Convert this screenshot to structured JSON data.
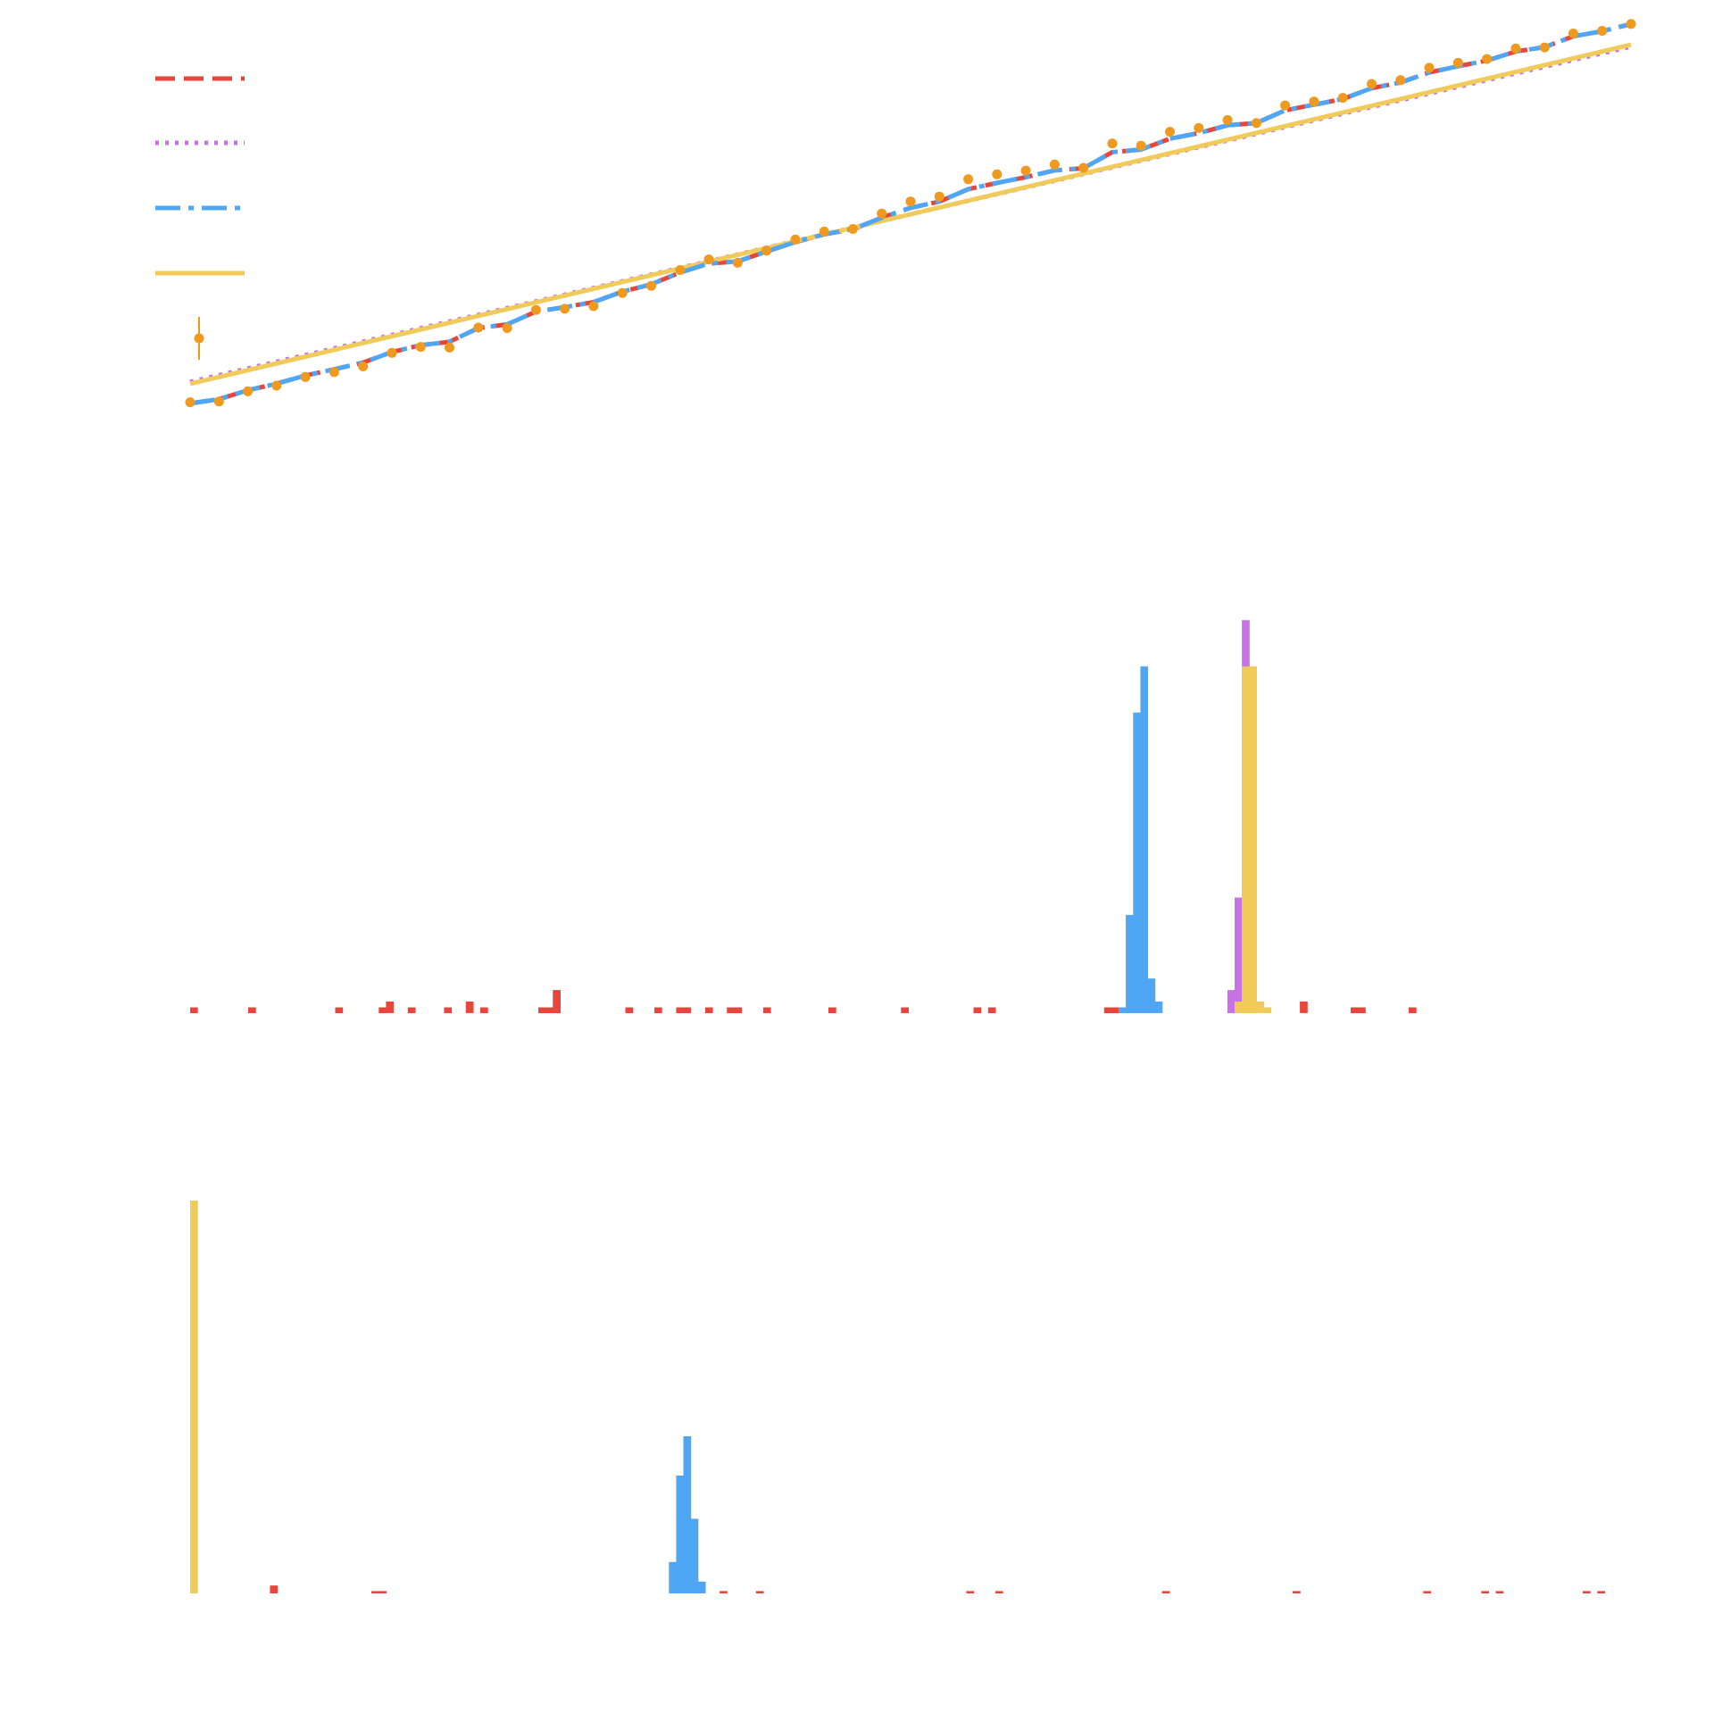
{
  "colors": {
    "red": "#e8453c",
    "purple": "#c773e6",
    "blue": "#4fa6f5",
    "yellow": "#f1cb5a",
    "orange": "#f0991f"
  },
  "chart_data": [
    {
      "type": "line",
      "title": "",
      "xlabel": "",
      "ylabel": "",
      "xlim": [
        0,
        50
      ],
      "ylim": [
        0,
        1
      ],
      "grid": false,
      "legend": "top-left",
      "x": [
        0,
        1,
        2,
        3,
        4,
        5,
        6,
        7,
        8,
        9,
        10,
        11,
        12,
        13,
        14,
        15,
        16,
        17,
        18,
        19,
        20,
        21,
        22,
        23,
        24,
        25,
        26,
        27,
        28,
        29,
        30,
        31,
        32,
        33,
        34,
        35,
        36,
        37,
        38,
        39,
        40,
        41,
        42,
        43,
        44,
        45,
        46,
        47,
        48,
        49,
        50
      ],
      "observed": [
        0.046,
        0.048,
        0.075,
        0.09,
        0.113,
        0.126,
        0.141,
        0.177,
        0.193,
        0.191,
        0.244,
        0.243,
        0.291,
        0.294,
        0.301,
        0.336,
        0.355,
        0.397,
        0.425,
        0.416,
        0.448,
        0.478,
        0.499,
        0.506,
        0.547,
        0.579,
        0.592,
        0.638,
        0.651,
        0.661,
        0.677,
        0.668,
        0.733,
        0.727,
        0.764,
        0.774,
        0.795,
        0.787,
        0.834,
        0.844,
        0.854,
        0.891,
        0.901,
        0.934,
        0.947,
        0.957,
        0.985,
        0.988,
        1.025,
        1.032,
        1.05
      ],
      "series": [
        {
          "name": "",
          "style": "dashed",
          "color": "red",
          "x": [
            0,
            50
          ],
          "y": [
            0.04,
            1.05
          ]
        },
        {
          "name": "",
          "style": "dotted",
          "color": "purple",
          "x": [
            0,
            50
          ],
          "y": [
            0.1,
            0.99
          ]
        },
        {
          "name": "",
          "style": "dashdot",
          "color": "blue",
          "x": [
            0,
            50
          ],
          "y": [
            0.04,
            1.05
          ]
        },
        {
          "name": "",
          "style": "solid",
          "color": "yellow",
          "x": [
            0,
            50
          ],
          "y": [
            0.095,
            0.995
          ]
        }
      ]
    },
    {
      "type": "bar",
      "title": "",
      "xlabel": "",
      "ylabel": "",
      "grid": false,
      "bin_width": 0.25,
      "series": [
        {
          "name": "",
          "color": "red",
          "bins": [
            [
              0,
              0.5
            ],
            [
              2,
              0.5
            ],
            [
              5,
              0.5
            ],
            [
              6.5,
              0.5
            ],
            [
              6.75,
              1
            ],
            [
              7.5,
              0.5
            ],
            [
              8.75,
              0.5
            ],
            [
              9.5,
              1
            ],
            [
              10,
              0.5
            ],
            [
              12,
              0.5
            ],
            [
              12.25,
              0.5
            ],
            [
              12.5,
              2
            ],
            [
              15,
              0.5
            ],
            [
              16,
              0.5
            ],
            [
              16.75,
              0.5
            ],
            [
              17,
              0.5
            ],
            [
              17.75,
              0.5
            ],
            [
              18.5,
              0.5
            ],
            [
              18.75,
              0.5
            ],
            [
              19.75,
              0.5
            ],
            [
              22,
              0.5
            ],
            [
              24.5,
              0.5
            ],
            [
              27,
              0.5
            ],
            [
              27.5,
              0.5
            ],
            [
              31.5,
              0.5
            ],
            [
              31.75,
              0.5
            ],
            [
              38.25,
              1
            ],
            [
              40,
              0.5
            ],
            [
              40.25,
              0.5
            ],
            [
              42,
              0.5
            ]
          ]
        },
        {
          "name": "",
          "color": "blue",
          "bins": [
            [
              32,
              0.5
            ],
            [
              32.25,
              8.5
            ],
            [
              32.5,
              26
            ],
            [
              32.75,
              30
            ],
            [
              33,
              3
            ],
            [
              33.25,
              1
            ]
          ]
        },
        {
          "name": "",
          "color": "purple",
          "bins": [
            [
              35.75,
              2
            ],
            [
              36,
              10
            ],
            [
              36.25,
              34
            ]
          ]
        },
        {
          "name": "",
          "color": "yellow",
          "bins": [
            [
              36,
              1
            ],
            [
              36.25,
              30
            ],
            [
              36.5,
              30
            ],
            [
              36.75,
              1
            ],
            [
              37,
              0.5
            ]
          ]
        }
      ]
    },
    {
      "type": "bar",
      "title": "",
      "xlabel": "",
      "ylabel": "",
      "grid": false,
      "bin_width": 0.25,
      "series": [
        {
          "name": "",
          "color": "yellow",
          "bins": [
            [
              0,
              50
            ]
          ]
        },
        {
          "name": "",
          "color": "blue",
          "bins": [
            [
              16.5,
              4
            ],
            [
              16.75,
              15
            ],
            [
              17,
              20
            ],
            [
              17.25,
              9.5
            ],
            [
              17.5,
              1.5
            ]
          ]
        },
        {
          "name": "",
          "color": "red",
          "bins": [
            [
              2.75,
              1
            ],
            [
              6.25,
              0.3
            ],
            [
              6.5,
              0.3
            ],
            [
              18.25,
              0.3
            ],
            [
              19.5,
              0.3
            ],
            [
              26.75,
              0.3
            ],
            [
              27.75,
              0.3
            ],
            [
              33.5,
              0.3
            ],
            [
              38,
              0.3
            ],
            [
              42.5,
              0.3
            ],
            [
              44.5,
              0.3
            ],
            [
              45,
              0.3
            ],
            [
              48,
              0.3
            ],
            [
              48.5,
              0.3
            ]
          ]
        }
      ]
    }
  ]
}
